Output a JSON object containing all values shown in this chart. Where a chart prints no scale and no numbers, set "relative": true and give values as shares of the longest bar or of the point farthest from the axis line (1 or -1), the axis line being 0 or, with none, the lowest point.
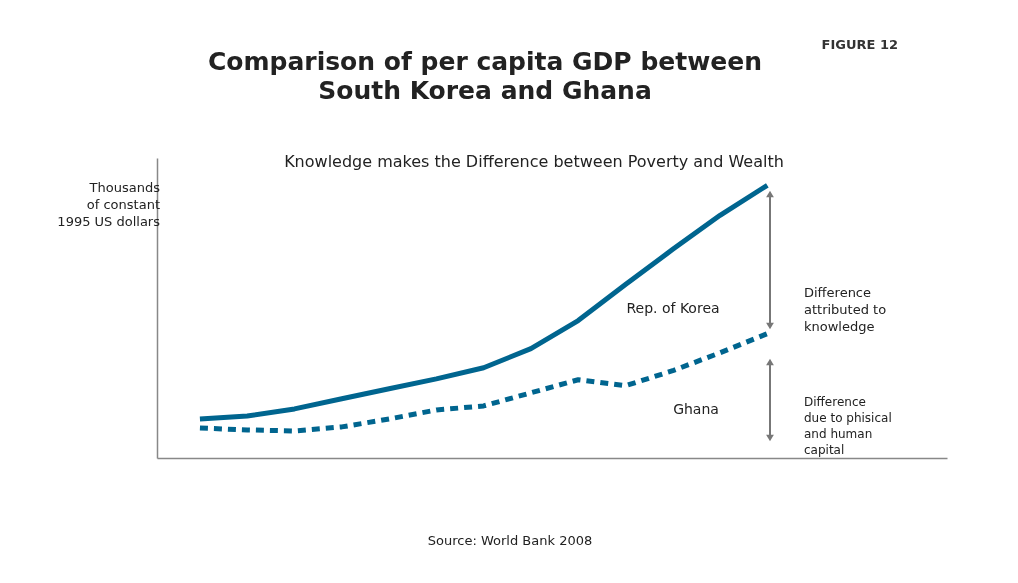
{
  "chart_data": {
    "type": "line",
    "title": "Comparison of per capita GDP between\nSouth Korea and Ghana",
    "subtitle": "Knowledge makes the Difference between Poverty and Wealth",
    "ylabel": "Thousands\nof constant\n1995 US dollars",
    "relative": true,
    "categories": [
      null,
      null,
      null,
      null,
      null,
      null,
      null,
      null,
      null,
      null,
      null,
      null,
      null
    ],
    "series": [
      {
        "name": "Rep. of Korea",
        "color": "#00658f",
        "line_style": "solid",
        "values": [
          0.143,
          0.154,
          0.18,
          0.217,
          0.254,
          0.29,
          0.331,
          0.401,
          0.504,
          0.636,
          0.765,
          0.89,
          1
        ]
      },
      {
        "name": "Ghana",
        "color": "#00658f",
        "line_style": "dashed",
        "values": [
          0.11,
          0.103,
          0.099,
          0.114,
          0.143,
          0.176,
          0.191,
          0.239,
          0.287,
          0.265,
          0.32,
          0.386,
          0.456
        ]
      }
    ],
    "annotations": [
      "FIGURE 12",
      "Difference\nattributed to\nknowledge",
      "Difference\ndue to phisical\nand human\ncapital",
      "Source: World Bank 2008"
    ]
  }
}
